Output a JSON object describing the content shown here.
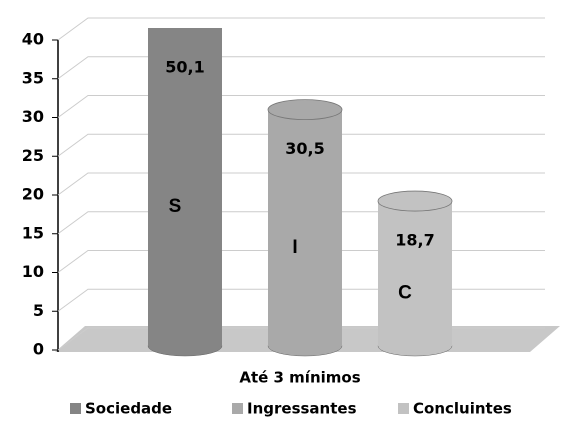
{
  "chart_data": {
    "type": "bar3d",
    "categories": [
      "Até 3 mínimos"
    ],
    "series": [
      {
        "name": "Sociedade",
        "color": "#858585",
        "values": [
          50.1
        ],
        "value_labels": [
          "50,1"
        ],
        "annotation": "S"
      },
      {
        "name": "Ingressantes",
        "color": "#a9a9a9",
        "values": [
          30.5
        ],
        "value_labels": [
          "30,5"
        ],
        "annotation": "I"
      },
      {
        "name": "Concluintes",
        "color": "#c2c2c2",
        "values": [
          18.7
        ],
        "value_labels": [
          "18,7"
        ],
        "annotation": "C"
      }
    ],
    "ylim": [
      0,
      40
    ],
    "yticks": [
      0,
      5,
      10,
      15,
      20,
      25,
      30,
      35,
      40
    ],
    "grid": true,
    "legend": "bottom"
  }
}
